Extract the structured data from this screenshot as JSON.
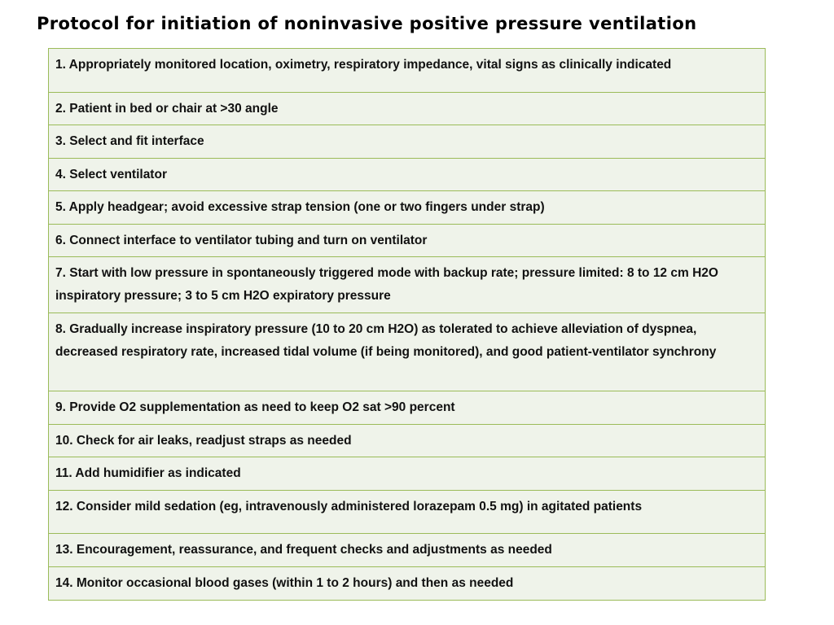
{
  "title": "Protocol for initiation of noninvasive positive pressure ventilation",
  "steps": [
    "1. Appropriately monitored location, oximetry, respiratory impedance, vital signs as clinically indicated",
    "2. Patient in bed or chair at >30 angle",
    "3. Select and fit interface",
    "4. Select ventilator",
    "5. Apply headgear; avoid excessive strap tension (one or two fingers under strap)",
    "6. Connect interface to ventilator tubing and turn on ventilator",
    "7. Start with low pressure in spontaneously triggered mode with backup rate; pressure limited: 8 to 12 cm H2O inspiratory pressure; 3 to 5 cm H2O expiratory pressure",
    "8. Gradually increase inspiratory pressure (10 to 20 cm H2O) as tolerated to achieve alleviation of dyspnea, decreased respiratory rate, increased tidal volume (if being monitored), and good patient-ventilator synchrony",
    "9. Provide O2 supplementation as need to keep O2 sat >90 percent",
    "10. Check for air leaks, readjust straps as needed",
    "11. Add humidifier as indicated",
    "12. Consider mild sedation (eg, intravenously administered lorazepam 0.5 mg) in agitated patients",
    "13. Encouragement, reassurance, and frequent checks and adjustments as needed",
    "14. Monitor occasional blood gases (within 1 to 2 hours) and then as needed"
  ]
}
